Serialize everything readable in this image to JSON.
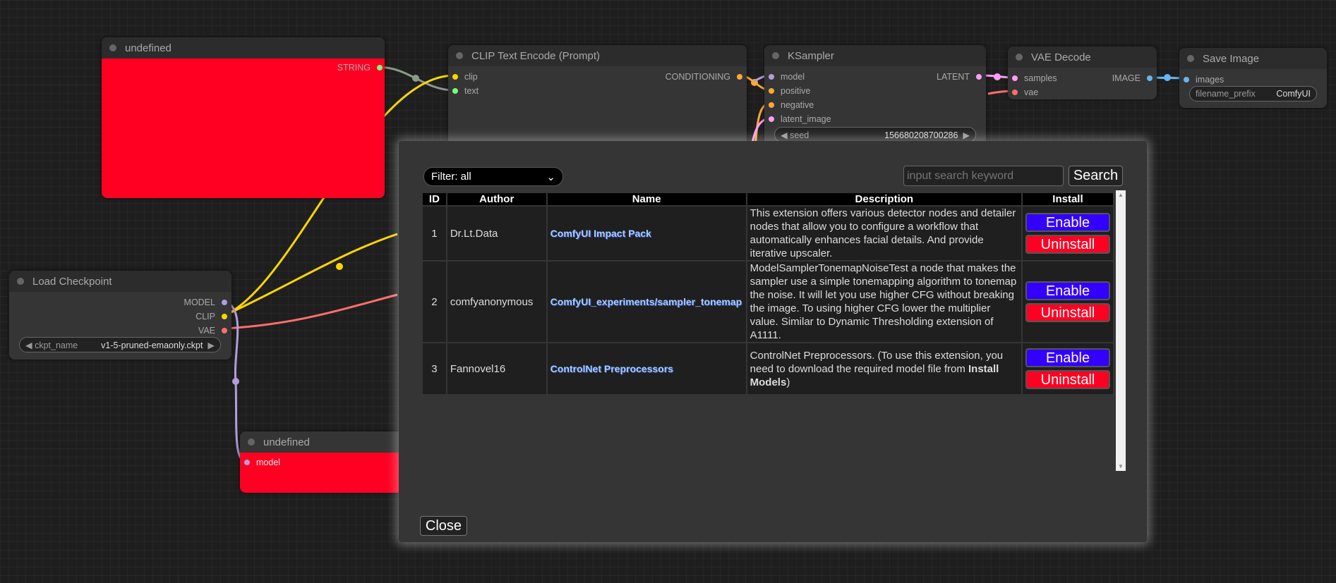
{
  "nodes": {
    "undefined_top": {
      "title": "undefined",
      "output": "STRING",
      "color": "#ff0022"
    },
    "clip_text_encode": {
      "title": "CLIP Text Encode (Prompt)",
      "inputs": [
        "clip",
        "text"
      ],
      "output": "CONDITIONING"
    },
    "ksampler": {
      "title": "KSampler",
      "inputs": [
        "model",
        "positive",
        "negative",
        "latent_image"
      ],
      "output": "LATENT",
      "seed_label": "seed",
      "seed_value": "156680208700286"
    },
    "vae_decode": {
      "title": "VAE Decode",
      "inputs": [
        "samples",
        "vae"
      ],
      "output": "IMAGE"
    },
    "save_image": {
      "title": "Save Image",
      "input": "images",
      "prefix_label": "filename_prefix",
      "prefix_value": "ComfyUI"
    },
    "load_checkpoint": {
      "title": "Load Checkpoint",
      "outputs": [
        "MODEL",
        "CLIP",
        "VAE"
      ],
      "ckpt_label": "ckpt_name",
      "ckpt_value": "v1-5-pruned-emaonly.ckpt"
    },
    "undefined_bottom": {
      "title": "undefined",
      "input": "model",
      "color": "#ff0022"
    }
  },
  "dialog": {
    "filter": "Filter: all",
    "search_placeholder": "input search keyword",
    "search_label": "Search",
    "columns": [
      "ID",
      "Author",
      "Name",
      "Description",
      "Install"
    ],
    "rows": [
      {
        "id": "1",
        "author": "Dr.Lt.Data",
        "name": "ComfyUI Impact Pack",
        "description": "This extension offers various detector nodes and detailer nodes that allow you to configure a workflow that automatically enhances facial details. And provide iterative upscaler.",
        "enable": "Enable",
        "uninstall": "Uninstall"
      },
      {
        "id": "2",
        "author": "comfyanonymous",
        "name": "ComfyUI_experiments/sampler_tonemap",
        "description": "ModelSamplerTonemapNoiseTest a node that makes the sampler use a simple tonemapping algorithm to tonemap the noise. It will let you use higher CFG without breaking the image. To using higher CFG lower the multiplier value. Similar to Dynamic Thresholding extension of A1111.",
        "enable": "Enable",
        "uninstall": "Uninstall"
      },
      {
        "id": "3",
        "author": "Fannovel16",
        "name": "ControlNet Preprocessors",
        "description": "ControlNet Preprocessors. (To use this extension, you need to download the required model file from ",
        "description_bold": "Install Models",
        "description_end": ")",
        "enable": "Enable",
        "uninstall": "Uninstall"
      }
    ],
    "close_label": "Close",
    "enable_color": "#3300ff",
    "uninstall_color": "#ff0022"
  }
}
